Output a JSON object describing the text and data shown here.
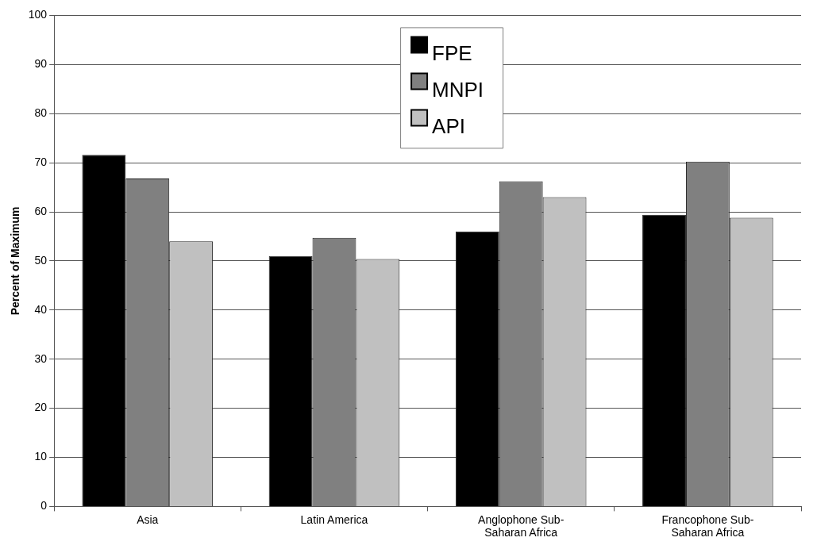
{
  "chart_data": {
    "type": "bar",
    "ylabel": "Percent of Maximum",
    "categories": [
      "Asia",
      "Latin America",
      "Anglophone Sub-Saharan Africa",
      "Francophone Sub-Saharan Africa"
    ],
    "series": [
      {
        "name": "FPE",
        "color": "#000000",
        "values": [
          71.6,
          51.0,
          56.0,
          59.4
        ]
      },
      {
        "name": "MNPI",
        "color": "#808080",
        "values": [
          66.8,
          54.7,
          66.2,
          70.2
        ]
      },
      {
        "name": "API",
        "color": "#c0c0c0",
        "values": [
          54.0,
          50.4,
          63.0,
          58.8
        ]
      }
    ],
    "ylim": [
      0,
      100
    ],
    "yticks": [
      0,
      10,
      20,
      30,
      40,
      50,
      60,
      70,
      80,
      90,
      100
    ],
    "grid": "y",
    "legend": "top"
  }
}
